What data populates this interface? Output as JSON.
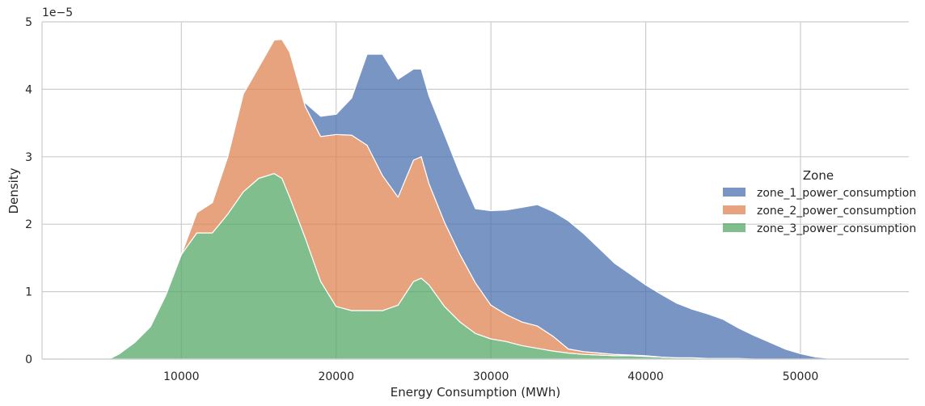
{
  "chart_data": {
    "type": "area",
    "stacked": true,
    "xlabel": "Energy Consumption (MWh)",
    "ylabel": "Density",
    "y_offset_label": "1e−5",
    "xlim": [
      1000,
      57000
    ],
    "ylim": [
      0,
      5
    ],
    "xticks": [
      10000,
      20000,
      30000,
      40000,
      50000
    ],
    "yticks": [
      0,
      1,
      2,
      3,
      4,
      5
    ],
    "grid": true,
    "legend": {
      "title": "Zone",
      "placement": "center-right",
      "entries": [
        {
          "label": "zone_1_power_consumption",
          "color": "#4c72b0"
        },
        {
          "label": "zone_2_power_consumption",
          "color": "#dd8452"
        },
        {
          "label": "zone_3_power_consumption",
          "color": "#55a868"
        }
      ]
    },
    "x": [
      2500,
      5000,
      5500,
      6000,
      7000,
      8000,
      9000,
      10000,
      11000,
      12000,
      13000,
      14000,
      15000,
      16000,
      16500,
      17000,
      18000,
      19000,
      20000,
      21000,
      22000,
      23000,
      24000,
      25000,
      25500,
      26000,
      27000,
      28000,
      29000,
      30000,
      31000,
      32000,
      33000,
      34000,
      35000,
      36000,
      37000,
      38000,
      39000,
      40000,
      41000,
      42000,
      43000,
      44000,
      45000,
      46000,
      47000,
      48000,
      49000,
      50000,
      51000,
      52000,
      55000
    ],
    "series": [
      {
        "name": "zone_3_power_consumption",
        "color": "#55a868",
        "values": [
          0,
          0,
          0.02,
          0.08,
          0.25,
          0.48,
          0.95,
          1.55,
          1.87,
          1.87,
          2.15,
          2.48,
          2.68,
          2.75,
          2.68,
          2.4,
          1.8,
          1.15,
          0.78,
          0.72,
          0.72,
          0.72,
          0.8,
          1.15,
          1.2,
          1.1,
          0.78,
          0.55,
          0.38,
          0.3,
          0.26,
          0.2,
          0.16,
          0.12,
          0.09,
          0.07,
          0.06,
          0.05,
          0.05,
          0.04,
          0.03,
          0.02,
          0.02,
          0.01,
          0.01,
          0.01,
          0.0,
          0.0,
          0.0,
          0.0,
          0.0,
          0.0,
          0.0
        ]
      },
      {
        "name": "zone_2_power_consumption",
        "color": "#dd8452",
        "values": [
          0,
          0,
          0,
          0,
          0,
          0,
          0,
          0,
          0.3,
          0.45,
          0.85,
          1.45,
          1.65,
          1.98,
          2.06,
          2.15,
          1.95,
          2.15,
          2.55,
          2.6,
          2.45,
          2.0,
          1.6,
          1.8,
          1.8,
          1.5,
          1.25,
          1.0,
          0.75,
          0.5,
          0.4,
          0.35,
          0.33,
          0.22,
          0.06,
          0.04,
          0.03,
          0.02,
          0.01,
          0.01,
          0.0,
          0.0,
          0.0,
          0.0,
          0.0,
          0.0,
          0.0,
          0.0,
          0.0,
          0.0,
          0.0,
          0.0,
          0.0
        ]
      },
      {
        "name": "zone_1_power_consumption",
        "color": "#4c72b0",
        "values": [
          0,
          0,
          0,
          0,
          0,
          0,
          0,
          0,
          0,
          0,
          0,
          0,
          0,
          0,
          0,
          0,
          0.05,
          0.3,
          0.3,
          0.55,
          1.35,
          1.8,
          1.75,
          1.35,
          1.3,
          1.3,
          1.3,
          1.2,
          1.1,
          1.4,
          1.55,
          1.7,
          1.8,
          1.85,
          1.9,
          1.75,
          1.55,
          1.35,
          1.2,
          1.05,
          0.93,
          0.81,
          0.72,
          0.66,
          0.58,
          0.45,
          0.35,
          0.25,
          0.15,
          0.08,
          0.03,
          0.01,
          0.0
        ]
      }
    ]
  }
}
